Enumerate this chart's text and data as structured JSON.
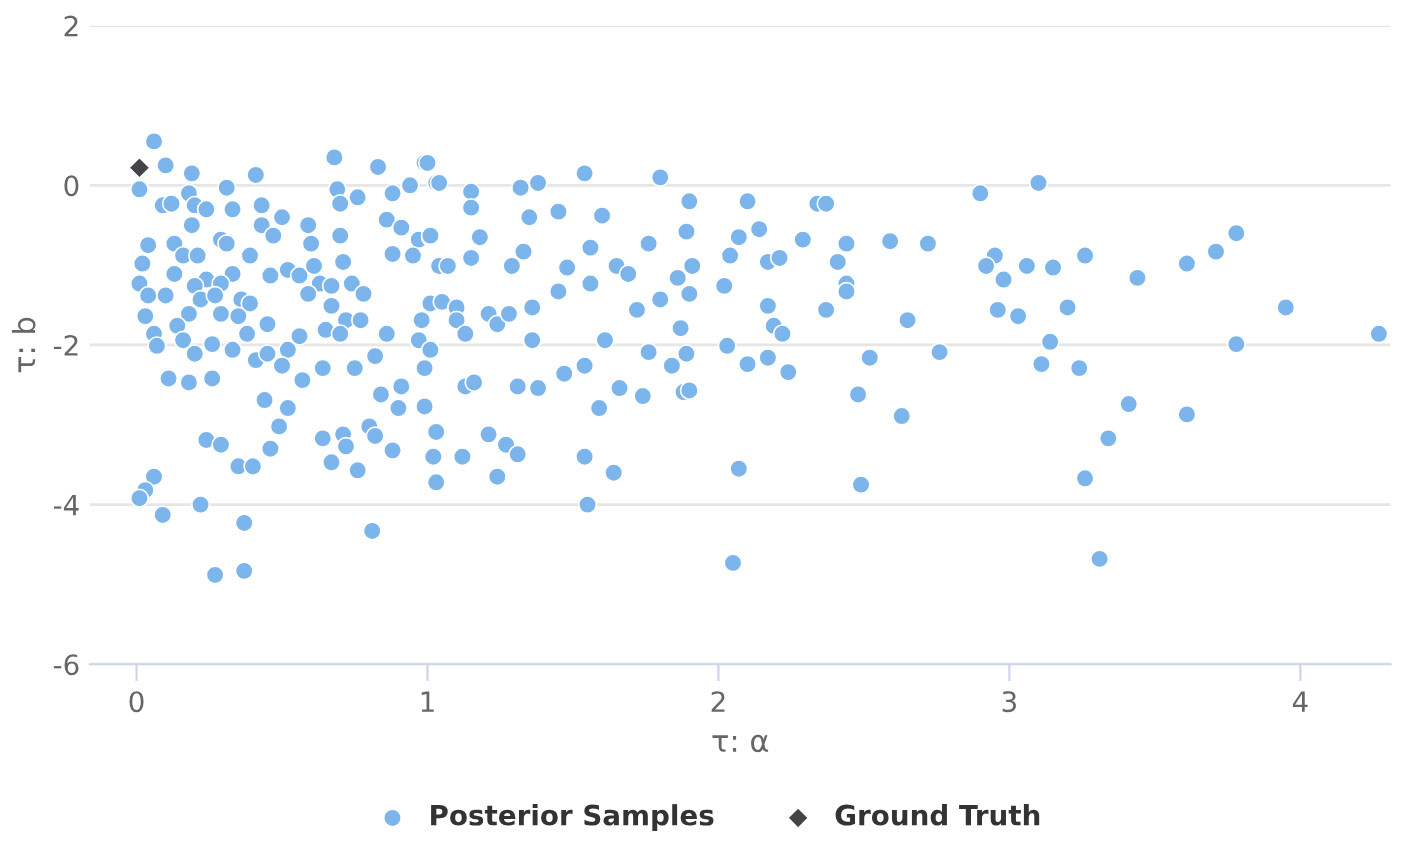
{
  "chart_data": {
    "type": "scatter",
    "xlabel": "τ: α",
    "ylabel": "τ: b",
    "xlim": [
      -0.16,
      4.31
    ],
    "ylim": [
      -6,
      2
    ],
    "xticks": [
      0,
      1,
      2,
      3,
      4
    ],
    "yticks": [
      -6,
      -4,
      -2,
      0,
      2
    ],
    "grid": "y",
    "legend": "bottom",
    "series": [
      {
        "name": "Posterior Samples",
        "color": "#7cb5ec",
        "marker": "circle",
        "x": [
          0.06,
          0.1,
          0.19,
          0.41,
          0.68,
          0.83,
          0.99,
          1.03,
          0.01,
          0.09,
          0.12,
          0.18,
          0.31,
          0.2,
          0.24,
          0.33,
          0.19,
          0.43,
          0.5,
          0.43,
          0.47,
          0.59,
          0.6,
          0.69,
          0.7,
          0.76,
          0.88,
          0.94,
          0.86,
          0.91,
          0.97,
          1.01,
          0.7,
          0.04,
          0.02,
          0.13,
          0.16,
          0.21,
          0.29,
          0.31,
          0.39,
          0.33,
          0.13,
          0.24,
          0.29,
          0.46,
          0.52,
          0.56,
          0.61,
          0.63,
          0.67,
          0.59,
          0.71,
          0.74,
          0.78,
          0.88,
          0.95,
          1.04,
          0.01,
          0.04,
          0.1,
          0.2,
          0.22,
          0.27,
          0.18,
          0.29,
          0.36,
          0.39,
          0.35,
          0.45,
          0.67,
          0.65,
          0.72,
          0.77,
          0.7,
          1.01,
          0.98,
          0.03,
          0.06,
          0.07,
          0.14,
          0.16,
          0.2,
          0.26,
          0.33,
          0.38,
          0.41,
          0.45,
          0.52,
          0.5,
          0.56,
          0.57,
          0.64,
          0.75,
          0.82,
          0.86,
          0.97,
          1.01,
          0.99,
          0.11,
          0.18,
          0.26,
          0.44,
          0.52,
          0.49,
          0.24,
          0.29,
          0.35,
          0.4,
          0.46,
          0.64,
          0.71,
          0.72,
          0.67,
          0.76,
          0.8,
          0.82,
          0.88,
          0.84,
          0.91,
          0.9,
          0.99,
          1.03,
          1.02,
          1.03,
          0.06,
          0.03,
          0.01,
          0.09,
          0.22,
          0.37,
          0.81,
          0.27,
          0.37,
          1.0,
          1.04,
          1.15,
          1.15,
          1.32,
          1.38,
          1.54,
          1.8,
          1.9,
          2.1,
          2.14,
          1.35,
          1.45,
          1.6,
          1.01,
          1.18,
          1.15,
          1.07,
          1.29,
          1.33,
          1.48,
          1.56,
          1.56,
          1.65,
          1.69,
          1.76,
          1.89,
          2.07,
          2.04,
          1.91,
          1.86,
          1.9,
          2.02,
          1.8,
          1.72,
          1.45,
          1.05,
          1.1,
          1.1,
          1.13,
          1.21,
          1.24,
          1.28,
          1.36,
          1.36,
          1.61,
          1.76,
          1.87,
          1.89,
          1.84,
          2.03,
          2.1,
          1.13,
          1.16,
          1.31,
          1.38,
          1.47,
          1.54,
          1.66,
          1.59,
          1.74,
          1.88,
          1.9,
          1.12,
          1.21,
          1.27,
          1.31,
          1.24,
          1.54,
          1.64,
          1.55,
          2.07,
          2.05,
          2.17,
          2.21,
          2.17,
          2.19,
          2.22,
          2.17,
          2.24,
          2.29,
          2.34,
          2.37,
          2.44,
          2.41,
          2.44,
          2.44,
          2.37,
          2.52,
          2.48,
          2.63,
          2.49,
          2.59,
          2.72,
          2.65,
          2.76,
          2.9,
          3.1,
          2.95,
          2.92,
          2.98,
          3.06,
          3.15,
          3.26,
          2.96,
          3.03,
          3.2,
          3.14,
          3.11,
          3.24,
          3.44,
          3.41,
          3.34,
          3.26,
          3.31,
          3.61,
          3.71,
          3.78,
          3.78,
          3.61,
          3.95,
          4.27
        ],
        "values": [
          0.55,
          0.25,
          0.15,
          0.13,
          0.35,
          0.23,
          0.28,
          0.03,
          -0.05,
          -0.25,
          -0.23,
          -0.1,
          -0.03,
          -0.25,
          -0.3,
          -0.3,
          -0.5,
          -0.25,
          -0.4,
          -0.5,
          -0.63,
          -0.5,
          -0.73,
          -0.05,
          -0.23,
          -0.15,
          -0.1,
          0.0,
          -0.43,
          -0.53,
          -0.68,
          -0.65,
          -0.63,
          -0.75,
          -0.98,
          -0.73,
          -0.88,
          -0.88,
          -0.68,
          -0.73,
          -0.88,
          -1.11,
          -1.11,
          -1.18,
          -1.23,
          -1.13,
          -1.06,
          -1.13,
          -1.01,
          -1.23,
          -1.26,
          -1.36,
          -0.96,
          -1.23,
          -1.36,
          -0.86,
          -0.88,
          -1.01,
          -1.23,
          -1.38,
          -1.38,
          -1.26,
          -1.43,
          -1.38,
          -1.61,
          -1.61,
          -1.43,
          -1.48,
          -1.64,
          -1.74,
          -1.51,
          -1.81,
          -1.69,
          -1.69,
          -1.86,
          -1.48,
          -1.69,
          -1.64,
          -1.86,
          -2.01,
          -1.76,
          -1.94,
          -2.11,
          -1.99,
          -2.06,
          -1.86,
          -2.19,
          -2.11,
          -2.06,
          -2.26,
          -1.89,
          -2.44,
          -2.29,
          -2.29,
          -2.14,
          -1.86,
          -1.94,
          -2.06,
          -2.29,
          -2.42,
          -2.47,
          -2.42,
          -2.69,
          -2.79,
          -3.02,
          -3.19,
          -3.25,
          -3.52,
          -3.52,
          -3.3,
          -3.17,
          -3.12,
          -3.27,
          -3.47,
          -3.57,
          -3.02,
          -3.14,
          -3.32,
          -2.62,
          -2.52,
          -2.79,
          -2.77,
          -3.09,
          -3.4,
          -3.72,
          -3.65,
          -3.82,
          -3.92,
          -4.13,
          -4.0,
          -4.23,
          -4.33,
          -4.88,
          -4.83,
          0.28,
          0.03,
          -0.08,
          -0.28,
          -0.03,
          0.03,
          0.15,
          0.1,
          -0.2,
          -0.2,
          -0.55,
          -0.4,
          -0.33,
          -0.38,
          -0.63,
          -0.65,
          -0.91,
          -1.01,
          -1.01,
          -0.83,
          -1.03,
          -0.78,
          -1.23,
          -1.01,
          -1.11,
          -0.73,
          -0.58,
          -0.65,
          -0.88,
          -1.01,
          -1.16,
          -1.36,
          -1.26,
          -1.43,
          -1.56,
          -1.33,
          -1.46,
          -1.53,
          -1.69,
          -1.86,
          -1.61,
          -1.74,
          -1.61,
          -1.53,
          -1.94,
          -1.94,
          -2.09,
          -1.79,
          -2.11,
          -2.26,
          -2.01,
          -2.24,
          -2.52,
          -2.47,
          -2.52,
          -2.54,
          -2.36,
          -2.26,
          -2.54,
          -2.79,
          -2.64,
          -2.59,
          -2.57,
          -3.4,
          -3.12,
          -3.25,
          -3.37,
          -3.65,
          -3.4,
          -3.6,
          -4.0,
          -3.55,
          -4.73,
          -0.96,
          -0.91,
          -1.51,
          -1.76,
          -1.86,
          -2.16,
          -2.34,
          -0.68,
          -0.23,
          -0.23,
          -0.73,
          -0.96,
          -1.23,
          -1.33,
          -1.56,
          -2.16,
          -2.62,
          -2.89,
          -3.75,
          -0.7,
          -0.73,
          -1.69,
          -2.09,
          -0.1,
          0.03,
          -0.88,
          -1.01,
          -1.18,
          -1.01,
          -1.03,
          -0.88,
          -1.56,
          -1.64,
          -1.53,
          -1.96,
          -2.24,
          -2.29,
          -1.16,
          -2.74,
          -3.17,
          -3.67,
          -4.68,
          -0.98,
          -0.83,
          -0.6,
          -1.99,
          -2.87,
          -1.53,
          -1.86
        ]
      },
      {
        "name": "Ground Truth",
        "color": "#434348",
        "marker": "diamond",
        "x": [
          0.01
        ],
        "values": [
          0.22
        ]
      }
    ]
  }
}
